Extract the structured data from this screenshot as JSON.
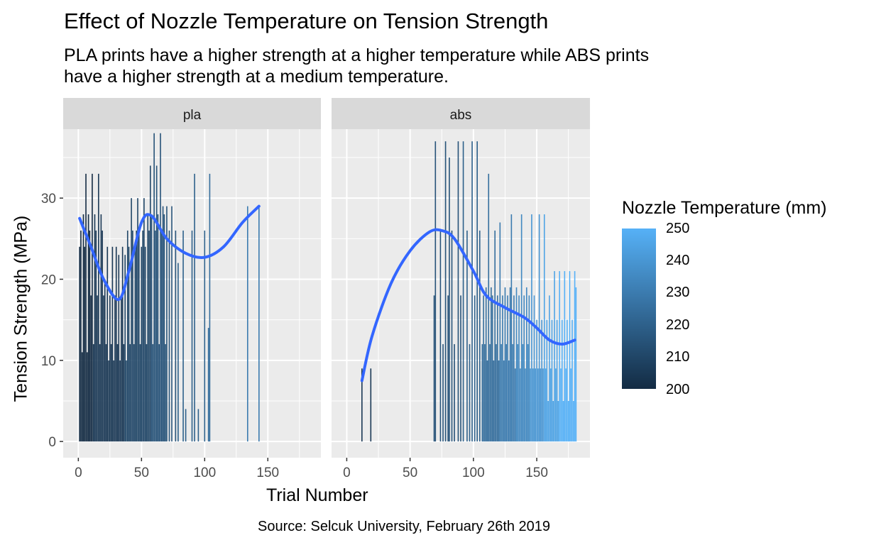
{
  "title": "Effect of Nozzle Temperature on Tension Strength",
  "subtitle": "PLA prints have a higher strength at a higher temperature while ABS prints have a higher strength at a medium temperature.",
  "caption": "Source: Selcuk University, February 26th 2019",
  "colors": {
    "panel_bg": "#EBEBEB",
    "strip_bg": "#D9D9D9",
    "grid": "#FFFFFF",
    "smooth_line": "#3366FF",
    "scale_low": "#132B43",
    "scale_high": "#56B1F7"
  },
  "legend": {
    "title": "Nozzle Temperature (mm)",
    "labels": [
      "250",
      "240",
      "230",
      "220",
      "210",
      "200"
    ]
  },
  "chart_data": {
    "type": "bar",
    "xlabel": "Trial Number",
    "ylabel": "Tension Strength (MPa)",
    "xlim": [
      -12,
      192
    ],
    "ylim": [
      -2,
      38.5
    ],
    "x_ticks": [
      0,
      50,
      100,
      150
    ],
    "y_ticks": [
      0,
      10,
      20,
      30
    ],
    "color_scale": {
      "variable": "Nozzle Temperature (mm)",
      "min": 200,
      "max": 250
    },
    "facets": [
      {
        "label": "pla",
        "bars": [
          {
            "x": 1,
            "y": 24,
            "t": 200
          },
          {
            "x": 2,
            "y": 26,
            "t": 200
          },
          {
            "x": 3,
            "y": 11,
            "t": 200
          },
          {
            "x": 4,
            "y": 28,
            "t": 200
          },
          {
            "x": 5,
            "y": 24,
            "t": 200
          },
          {
            "x": 6,
            "y": 33,
            "t": 200
          },
          {
            "x": 7,
            "y": 11,
            "t": 200
          },
          {
            "x": 8,
            "y": 28,
            "t": 200
          },
          {
            "x": 9,
            "y": 26,
            "t": 200
          },
          {
            "x": 10,
            "y": 18,
            "t": 200
          },
          {
            "x": 11,
            "y": 33,
            "t": 200
          },
          {
            "x": 12,
            "y": 12,
            "t": 205
          },
          {
            "x": 13,
            "y": 28,
            "t": 205
          },
          {
            "x": 14,
            "y": 26,
            "t": 205
          },
          {
            "x": 15,
            "y": 18,
            "t": 205
          },
          {
            "x": 16,
            "y": 33,
            "t": 205
          },
          {
            "x": 17,
            "y": 12,
            "t": 205
          },
          {
            "x": 18,
            "y": 28,
            "t": 205
          },
          {
            "x": 19,
            "y": 26,
            "t": 205
          },
          {
            "x": 20,
            "y": 18,
            "t": 205
          },
          {
            "x": 21,
            "y": 20,
            "t": 205
          },
          {
            "x": 22,
            "y": 12,
            "t": 205
          },
          {
            "x": 23,
            "y": 24,
            "t": 205
          },
          {
            "x": 24,
            "y": 10,
            "t": 205
          },
          {
            "x": 25,
            "y": 18,
            "t": 205
          },
          {
            "x": 26,
            "y": 12,
            "t": 205
          },
          {
            "x": 27,
            "y": 24,
            "t": 205
          },
          {
            "x": 28,
            "y": 10,
            "t": 205
          },
          {
            "x": 29,
            "y": 18,
            "t": 205
          },
          {
            "x": 30,
            "y": 24,
            "t": 205
          },
          {
            "x": 31,
            "y": 12,
            "t": 205
          },
          {
            "x": 32,
            "y": 23,
            "t": 205
          },
          {
            "x": 33,
            "y": 10,
            "t": 205
          },
          {
            "x": 34,
            "y": 18,
            "t": 205
          },
          {
            "x": 35,
            "y": 24,
            "t": 205
          },
          {
            "x": 36,
            "y": 12,
            "t": 205
          },
          {
            "x": 37,
            "y": 23,
            "t": 210
          },
          {
            "x": 38,
            "y": 10,
            "t": 210
          },
          {
            "x": 39,
            "y": 26,
            "t": 210
          },
          {
            "x": 40,
            "y": 24,
            "t": 210
          },
          {
            "x": 41,
            "y": 12,
            "t": 210
          },
          {
            "x": 42,
            "y": 30,
            "t": 210
          },
          {
            "x": 43,
            "y": 26,
            "t": 210
          },
          {
            "x": 44,
            "y": 12,
            "t": 210
          },
          {
            "x": 45,
            "y": 24,
            "t": 210
          },
          {
            "x": 46,
            "y": 26,
            "t": 210
          },
          {
            "x": 47,
            "y": 30,
            "t": 210
          },
          {
            "x": 48,
            "y": 26,
            "t": 210
          },
          {
            "x": 49,
            "y": 12,
            "t": 210
          },
          {
            "x": 50,
            "y": 24,
            "t": 210
          },
          {
            "x": 51,
            "y": 26,
            "t": 210
          },
          {
            "x": 52,
            "y": 30,
            "t": 210
          },
          {
            "x": 53,
            "y": 24,
            "t": 210
          },
          {
            "x": 54,
            "y": 12,
            "t": 210
          },
          {
            "x": 55,
            "y": 28,
            "t": 210
          },
          {
            "x": 56,
            "y": 26,
            "t": 210
          },
          {
            "x": 57,
            "y": 34,
            "t": 210
          },
          {
            "x": 58,
            "y": 28,
            "t": 215
          },
          {
            "x": 59,
            "y": 12,
            "t": 215
          },
          {
            "x": 60,
            "y": 38,
            "t": 215
          },
          {
            "x": 61,
            "y": 26,
            "t": 215
          },
          {
            "x": 62,
            "y": 34,
            "t": 215
          },
          {
            "x": 63,
            "y": 28,
            "t": 215
          },
          {
            "x": 64,
            "y": 12,
            "t": 215
          },
          {
            "x": 65,
            "y": 38,
            "t": 215
          },
          {
            "x": 66,
            "y": 26,
            "t": 215
          },
          {
            "x": 67,
            "y": 29,
            "t": 215
          },
          {
            "x": 68,
            "y": 28,
            "t": 215
          },
          {
            "x": 69,
            "y": 12,
            "t": 215
          },
          {
            "x": 70,
            "y": 29,
            "t": 215
          },
          {
            "x": 72,
            "y": 26,
            "t": 215
          },
          {
            "x": 74,
            "y": 29,
            "t": 215
          },
          {
            "x": 77,
            "y": 26,
            "t": 215
          },
          {
            "x": 79,
            "y": 22,
            "t": 220
          },
          {
            "x": 83,
            "y": 26,
            "t": 220
          },
          {
            "x": 85,
            "y": 4,
            "t": 220
          },
          {
            "x": 90,
            "y": 26,
            "t": 220
          },
          {
            "x": 92,
            "y": 33,
            "t": 220
          },
          {
            "x": 95,
            "y": 4,
            "t": 220
          },
          {
            "x": 100,
            "y": 26,
            "t": 220
          },
          {
            "x": 103,
            "y": 14,
            "t": 225
          },
          {
            "x": 104,
            "y": 33,
            "t": 225
          },
          {
            "x": 134,
            "y": 29,
            "t": 230
          },
          {
            "x": 143,
            "y": 29,
            "t": 230
          }
        ],
        "smooth": {
          "x": [
            1,
            10,
            20,
            32,
            40,
            50,
            58,
            70,
            85,
            100,
            115,
            130,
            143
          ],
          "y": [
            27.5,
            24,
            20,
            17.5,
            21,
            27,
            27.8,
            25,
            23.2,
            22.7,
            24,
            27,
            29
          ]
        }
      },
      {
        "label": "abs",
        "bars": [
          {
            "x": 12,
            "y": 9,
            "t": 205
          },
          {
            "x": 19,
            "y": 9,
            "t": 205
          },
          {
            "x": 69,
            "y": 18,
            "t": 215
          },
          {
            "x": 70,
            "y": 37,
            "t": 215
          },
          {
            "x": 74,
            "y": 26,
            "t": 215
          },
          {
            "x": 76,
            "y": 12,
            "t": 215
          },
          {
            "x": 78,
            "y": 37,
            "t": 215
          },
          {
            "x": 80,
            "y": 18,
            "t": 215
          },
          {
            "x": 81,
            "y": 35,
            "t": 215
          },
          {
            "x": 83,
            "y": 26,
            "t": 215
          },
          {
            "x": 85,
            "y": 12,
            "t": 215
          },
          {
            "x": 88,
            "y": 37,
            "t": 215
          },
          {
            "x": 90,
            "y": 18,
            "t": 215
          },
          {
            "x": 92,
            "y": 37,
            "t": 220
          },
          {
            "x": 95,
            "y": 26,
            "t": 220
          },
          {
            "x": 97,
            "y": 12,
            "t": 220
          },
          {
            "x": 99,
            "y": 37,
            "t": 220
          },
          {
            "x": 101,
            "y": 18,
            "t": 220
          },
          {
            "x": 103,
            "y": 37,
            "t": 220
          },
          {
            "x": 105,
            "y": 26,
            "t": 220
          },
          {
            "x": 107,
            "y": 12,
            "t": 225
          },
          {
            "x": 108,
            "y": 18,
            "t": 225
          },
          {
            "x": 109,
            "y": 12,
            "t": 225
          },
          {
            "x": 110,
            "y": 19,
            "t": 225
          },
          {
            "x": 111,
            "y": 10,
            "t": 225
          },
          {
            "x": 112,
            "y": 33,
            "t": 225
          },
          {
            "x": 113,
            "y": 12,
            "t": 225
          },
          {
            "x": 114,
            "y": 19,
            "t": 225
          },
          {
            "x": 115,
            "y": 18,
            "t": 225
          },
          {
            "x": 116,
            "y": 10,
            "t": 225
          },
          {
            "x": 117,
            "y": 26,
            "t": 225
          },
          {
            "x": 118,
            "y": 12,
            "t": 225
          },
          {
            "x": 119,
            "y": 18,
            "t": 225
          },
          {
            "x": 120,
            "y": 10,
            "t": 225
          },
          {
            "x": 121,
            "y": 27,
            "t": 230
          },
          {
            "x": 122,
            "y": 12,
            "t": 230
          },
          {
            "x": 123,
            "y": 18,
            "t": 230
          },
          {
            "x": 124,
            "y": 10,
            "t": 230
          },
          {
            "x": 125,
            "y": 19,
            "t": 230
          },
          {
            "x": 126,
            "y": 12,
            "t": 230
          },
          {
            "x": 127,
            "y": 18,
            "t": 230
          },
          {
            "x": 128,
            "y": 10,
            "t": 230
          },
          {
            "x": 129,
            "y": 19,
            "t": 230
          },
          {
            "x": 130,
            "y": 28,
            "t": 230
          },
          {
            "x": 131,
            "y": 12,
            "t": 230
          },
          {
            "x": 132,
            "y": 18,
            "t": 230
          },
          {
            "x": 133,
            "y": 9,
            "t": 230
          },
          {
            "x": 134,
            "y": 19,
            "t": 235
          },
          {
            "x": 135,
            "y": 12,
            "t": 235
          },
          {
            "x": 136,
            "y": 18,
            "t": 235
          },
          {
            "x": 137,
            "y": 9,
            "t": 235
          },
          {
            "x": 138,
            "y": 28,
            "t": 235
          },
          {
            "x": 139,
            "y": 12,
            "t": 235
          },
          {
            "x": 140,
            "y": 18,
            "t": 235
          },
          {
            "x": 141,
            "y": 9,
            "t": 235
          },
          {
            "x": 142,
            "y": 19,
            "t": 235
          },
          {
            "x": 143,
            "y": 12,
            "t": 235
          },
          {
            "x": 144,
            "y": 18,
            "t": 235
          },
          {
            "x": 145,
            "y": 9,
            "t": 240
          },
          {
            "x": 146,
            "y": 28,
            "t": 240
          },
          {
            "x": 147,
            "y": 9,
            "t": 240
          },
          {
            "x": 148,
            "y": 18,
            "t": 240
          },
          {
            "x": 149,
            "y": 9,
            "t": 240
          },
          {
            "x": 150,
            "y": 15,
            "t": 240
          },
          {
            "x": 151,
            "y": 9,
            "t": 240
          },
          {
            "x": 152,
            "y": 28,
            "t": 240
          },
          {
            "x": 153,
            "y": 9,
            "t": 240
          },
          {
            "x": 154,
            "y": 15,
            "t": 240
          },
          {
            "x": 155,
            "y": 9,
            "t": 240
          },
          {
            "x": 156,
            "y": 28,
            "t": 245
          },
          {
            "x": 157,
            "y": 9,
            "t": 245
          },
          {
            "x": 158,
            "y": 15,
            "t": 245
          },
          {
            "x": 159,
            "y": 5,
            "t": 245
          },
          {
            "x": 160,
            "y": 18,
            "t": 245
          },
          {
            "x": 161,
            "y": 9,
            "t": 245
          },
          {
            "x": 162,
            "y": 15,
            "t": 245
          },
          {
            "x": 163,
            "y": 5,
            "t": 245
          },
          {
            "x": 164,
            "y": 21,
            "t": 245
          },
          {
            "x": 165,
            "y": 9,
            "t": 245
          },
          {
            "x": 166,
            "y": 15,
            "t": 245
          },
          {
            "x": 167,
            "y": 5,
            "t": 245
          },
          {
            "x": 168,
            "y": 21,
            "t": 250
          },
          {
            "x": 169,
            "y": 9,
            "t": 250
          },
          {
            "x": 170,
            "y": 15,
            "t": 250
          },
          {
            "x": 171,
            "y": 5,
            "t": 250
          },
          {
            "x": 172,
            "y": 21,
            "t": 250
          },
          {
            "x": 173,
            "y": 9,
            "t": 250
          },
          {
            "x": 174,
            "y": 15,
            "t": 250
          },
          {
            "x": 175,
            "y": 5,
            "t": 250
          },
          {
            "x": 176,
            "y": 21,
            "t": 250
          },
          {
            "x": 177,
            "y": 9,
            "t": 250
          },
          {
            "x": 178,
            "y": 15,
            "t": 250
          },
          {
            "x": 179,
            "y": 5,
            "t": 250
          },
          {
            "x": 180,
            "y": 21,
            "t": 250
          },
          {
            "x": 181,
            "y": 19,
            "t": 250
          }
        ],
        "smooth": {
          "x": [
            12,
            20,
            35,
            50,
            65,
            75,
            85,
            100,
            110,
            125,
            140,
            150,
            160,
            170,
            180
          ],
          "y": [
            7.5,
            13,
            19.5,
            23.5,
            25.8,
            26,
            25,
            21,
            18,
            16.5,
            15.3,
            14,
            12.5,
            12,
            12.5
          ]
        }
      }
    ]
  }
}
